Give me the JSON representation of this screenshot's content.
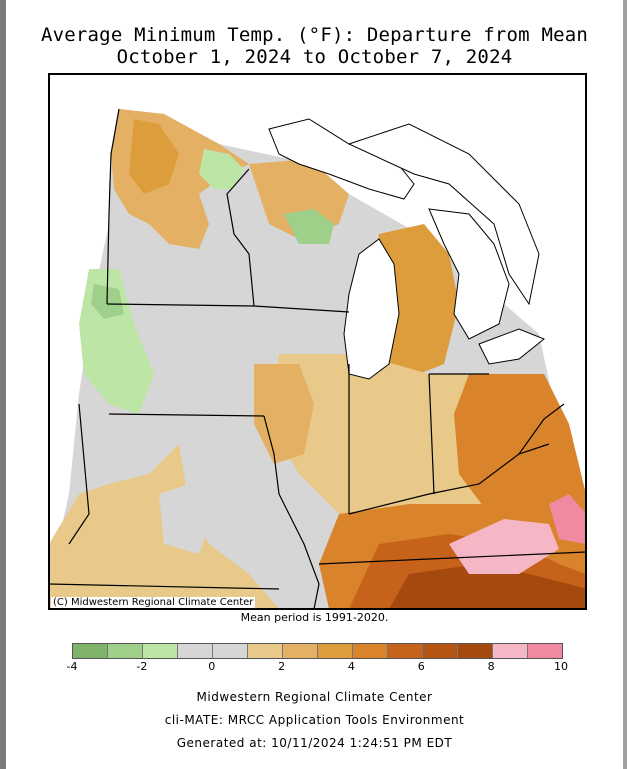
{
  "header": {
    "title_line1": "Average Minimum Temp. (°F): Departure from Mean",
    "title_line2": "October 1, 2024 to October 7, 2024"
  },
  "map": {
    "credit": "(C) Midwestern Regional Climate Center",
    "mean_period": "Mean period is 1991-2020.",
    "colors": {
      "dark_green": "#7fb36a",
      "mid_green": "#9fd08a",
      "light_green": "#bde6a6",
      "neutral": "#d6d6d6",
      "tan1": "#e8c98a",
      "tan2": "#e3b064",
      "orange1": "#de9d3c",
      "orange2": "#d9842a",
      "orange3": "#c7621a",
      "dark_orange": "#a44a0f",
      "light_pink": "#f5b7c6",
      "pink": "#f08aa0",
      "water": "#ffffff",
      "lines": "#000000"
    }
  },
  "legend": {
    "colors": [
      "#7fb36a",
      "#9fd08a",
      "#bde6a6",
      "#d6d6d6",
      "#d6d6d6",
      "#e8c98a",
      "#e3b064",
      "#de9d3c",
      "#d9842a",
      "#c7621a",
      "#b65414",
      "#a44a0f",
      "#f5b7c6",
      "#f08aa0"
    ],
    "ticks": [
      "-4",
      "-2",
      "0",
      "2",
      "4",
      "6",
      "8",
      "10"
    ]
  },
  "footer": {
    "line1": "Midwestern Regional Climate Center",
    "line2": "cli-MATE: MRCC Application Tools Environment",
    "line3": "Generated at: 10/11/2024 1:24:51 PM EDT"
  }
}
